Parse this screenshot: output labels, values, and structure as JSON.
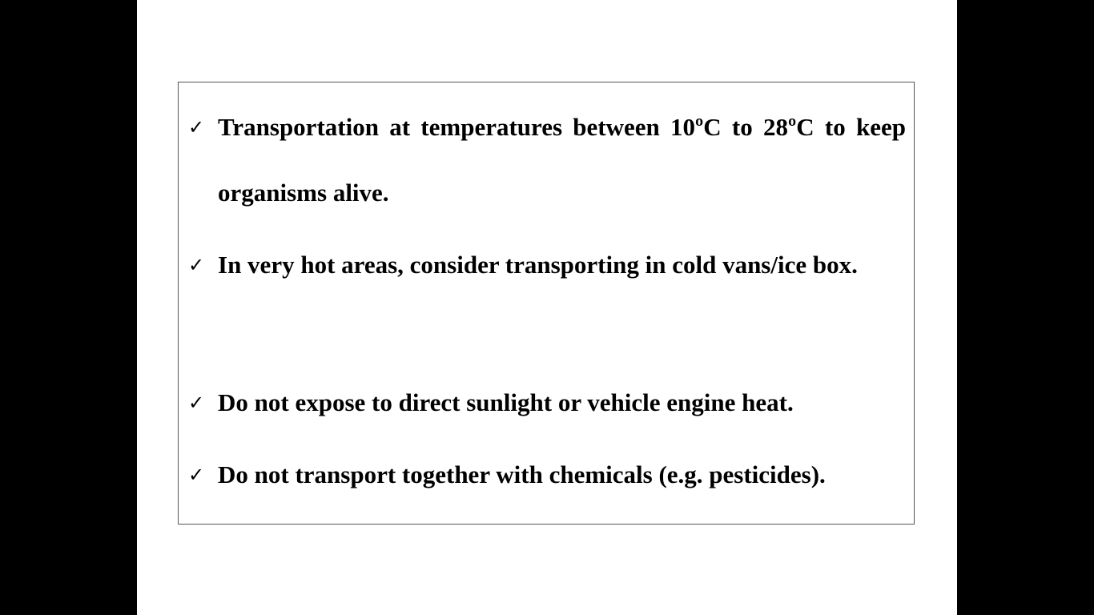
{
  "slide": {
    "bullets": [
      {
        "icon": "checkmark-icon",
        "mark": "✓",
        "text": "Transportation at temperatures between 10ºC to 28ºC to keep organisms alive."
      },
      {
        "icon": "checkmark-icon",
        "mark": "✓",
        "text": "In very hot areas, consider transporting in cold vans/ice box."
      },
      {
        "icon": "checkmark-icon",
        "mark": "✓",
        "text": "Do not expose to direct sunlight or vehicle engine heat."
      },
      {
        "icon": "checkmark-icon",
        "mark": "✓",
        "text": "Do not transport together with chemicals (e.g. pesticides)."
      }
    ]
  },
  "colors": {
    "letterbox": "#000000",
    "slide_background": "#ffffff",
    "text": "#000000",
    "border": "#555555"
  }
}
